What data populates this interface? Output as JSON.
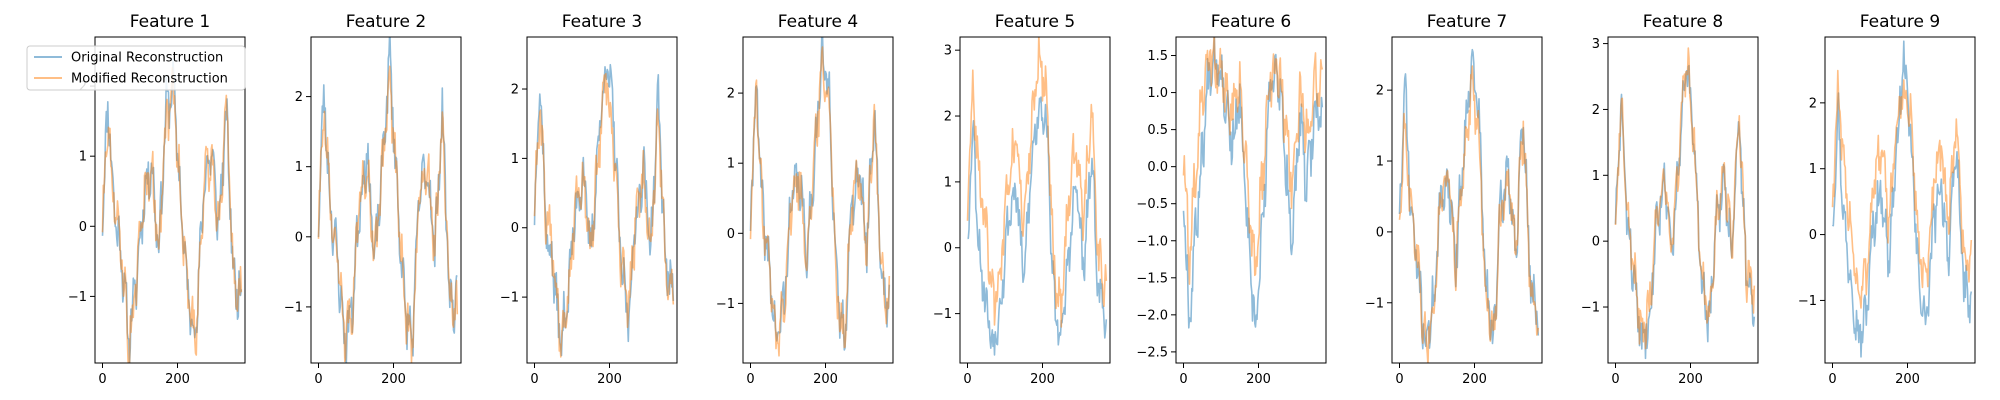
{
  "figure": {
    "background": "#ffffff"
  },
  "legend": {
    "placement": "upper-left of first panel",
    "entries": [
      {
        "label": "Original Reconstruction",
        "color": "#1f77b4",
        "alpha": 0.5
      },
      {
        "label": "Modified Reconstruction",
        "color": "#ff7f0e",
        "alpha": 0.5
      }
    ]
  },
  "chart_data": [
    {
      "type": "line",
      "title": "Feature 1",
      "x_ticks": [
        0,
        200
      ],
      "y_ticks": [
        -1,
        0,
        1,
        2
      ],
      "ylim": [
        -1.95,
        2.7
      ],
      "xlim": [
        -20,
        380
      ],
      "grid": false,
      "seed": 11,
      "series": [
        {
          "name": "Original Reconstruction",
          "x": [
            0,
            15,
            30,
            50,
            70,
            90,
            110,
            130,
            150,
            170,
            190,
            210,
            230,
            250,
            270,
            290,
            310,
            330,
            350,
            370
          ],
          "y": [
            0.2,
            1.8,
            0.3,
            -0.4,
            -1.6,
            -0.8,
            0.4,
            0.9,
            -0.3,
            1.7,
            2.0,
            0.2,
            -1.1,
            -1.5,
            0.6,
            1.1,
            0.0,
            1.6,
            -0.8,
            -1.0
          ]
        },
        {
          "name": "Modified Reconstruction",
          "x": [
            0,
            15,
            30,
            50,
            70,
            90,
            110,
            130,
            150,
            170,
            190,
            210,
            230,
            250,
            270,
            290,
            310,
            330,
            350,
            370
          ],
          "y": [
            0.2,
            1.6,
            0.3,
            -0.3,
            -1.7,
            -0.8,
            0.4,
            0.9,
            -0.3,
            1.5,
            1.9,
            0.2,
            -1.1,
            -1.5,
            0.6,
            1.0,
            0.0,
            1.7,
            -0.8,
            -1.0
          ]
        }
      ]
    },
    {
      "type": "line",
      "title": "Feature 2",
      "x_ticks": [
        0,
        200
      ],
      "y_ticks": [
        -1,
        0,
        1,
        2
      ],
      "ylim": [
        -1.8,
        2.85
      ],
      "xlim": [
        -20,
        380
      ],
      "grid": false,
      "seed": 23,
      "series": [
        {
          "name": "Original Reconstruction",
          "x": [
            0,
            15,
            30,
            50,
            70,
            90,
            110,
            130,
            150,
            170,
            190,
            210,
            230,
            250,
            270,
            290,
            310,
            330,
            350,
            370
          ],
          "y": [
            0.3,
            2.1,
            0.5,
            -0.3,
            -1.5,
            -1.0,
            0.5,
            1.2,
            -0.4,
            1.0,
            2.6,
            0.6,
            -1.0,
            -1.5,
            0.7,
            1.0,
            -0.2,
            1.8,
            -0.9,
            -1.0
          ]
        },
        {
          "name": "Modified Reconstruction",
          "x": [
            0,
            15,
            30,
            50,
            70,
            90,
            110,
            130,
            150,
            170,
            190,
            210,
            230,
            250,
            270,
            290,
            310,
            330,
            350,
            370
          ],
          "y": [
            0.3,
            1.9,
            0.5,
            -0.3,
            -1.5,
            -1.0,
            0.5,
            1.1,
            -0.4,
            1.0,
            2.3,
            0.6,
            -1.0,
            -1.5,
            0.7,
            1.0,
            -0.2,
            1.7,
            -0.9,
            -1.0
          ]
        }
      ]
    },
    {
      "type": "line",
      "title": "Feature 3",
      "x_ticks": [
        0,
        200
      ],
      "y_ticks": [
        -1,
        0,
        1,
        2
      ],
      "ylim": [
        -1.95,
        2.75
      ],
      "xlim": [
        -20,
        380
      ],
      "grid": false,
      "seed": 37,
      "series": [
        {
          "name": "Original Reconstruction",
          "x": [
            0,
            15,
            30,
            50,
            70,
            90,
            110,
            130,
            150,
            170,
            190,
            210,
            230,
            250,
            270,
            290,
            310,
            330,
            350,
            370
          ],
          "y": [
            0.3,
            2.2,
            0.0,
            -0.6,
            -1.7,
            -0.9,
            0.3,
            0.8,
            -0.4,
            1.2,
            2.4,
            1.7,
            -0.5,
            -1.3,
            0.1,
            0.9,
            -0.3,
            1.9,
            -0.6,
            -0.9
          ]
        },
        {
          "name": "Modified Reconstruction",
          "x": [
            0,
            15,
            30,
            50,
            70,
            90,
            110,
            130,
            150,
            170,
            190,
            210,
            230,
            250,
            270,
            290,
            310,
            330,
            350,
            370
          ],
          "y": [
            0.3,
            1.7,
            0.2,
            -0.4,
            -1.6,
            -0.9,
            0.3,
            0.7,
            -0.4,
            1.1,
            2.2,
            1.2,
            -0.5,
            -1.2,
            0.1,
            0.8,
            -0.3,
            1.6,
            -0.6,
            -0.9
          ]
        }
      ]
    },
    {
      "type": "line",
      "title": "Feature 4",
      "x_ticks": [
        0,
        200
      ],
      "y_ticks": [
        -1,
        0,
        1,
        2
      ],
      "ylim": [
        -1.85,
        2.8
      ],
      "xlim": [
        -20,
        380
      ],
      "grid": false,
      "seed": 41,
      "series": [
        {
          "name": "Original Reconstruction",
          "x": [
            0,
            15,
            30,
            50,
            70,
            90,
            110,
            130,
            150,
            170,
            190,
            210,
            230,
            250,
            270,
            290,
            310,
            330,
            350,
            370
          ],
          "y": [
            0.2,
            2.2,
            0.4,
            -0.5,
            -1.6,
            -0.9,
            0.5,
            0.8,
            -0.3,
            1.0,
            2.5,
            2.0,
            -0.8,
            -1.5,
            0.4,
            0.9,
            -0.2,
            1.8,
            -0.7,
            -1.0
          ]
        },
        {
          "name": "Modified Reconstruction",
          "x": [
            0,
            15,
            30,
            50,
            70,
            90,
            110,
            130,
            150,
            170,
            190,
            210,
            230,
            250,
            270,
            290,
            310,
            330,
            350,
            370
          ],
          "y": [
            0.2,
            2.1,
            0.4,
            -0.5,
            -1.6,
            -0.9,
            0.5,
            0.8,
            -0.3,
            1.0,
            2.4,
            1.9,
            -0.8,
            -1.5,
            0.4,
            0.9,
            -0.2,
            1.7,
            -0.7,
            -1.0
          ]
        }
      ]
    },
    {
      "type": "line",
      "title": "Feature 5",
      "x_ticks": [
        0,
        200
      ],
      "y_ticks": [
        -1,
        0,
        1,
        2,
        3
      ],
      "ylim": [
        -1.75,
        3.2
      ],
      "xlim": [
        -20,
        380
      ],
      "grid": false,
      "seed": 53,
      "series": [
        {
          "name": "Original Reconstruction",
          "x": [
            0,
            15,
            30,
            50,
            70,
            90,
            110,
            130,
            150,
            170,
            190,
            210,
            230,
            250,
            270,
            290,
            310,
            330,
            350,
            370
          ],
          "y": [
            0.2,
            1.9,
            0.0,
            -0.9,
            -1.5,
            -0.7,
            0.5,
            0.9,
            -0.5,
            1.2,
            2.2,
            2.0,
            -0.8,
            -1.4,
            -0.1,
            1.0,
            -0.4,
            1.4,
            -0.7,
            -1.0
          ]
        },
        {
          "name": "Modified Reconstruction",
          "x": [
            0,
            15,
            30,
            50,
            70,
            90,
            110,
            130,
            150,
            170,
            190,
            210,
            230,
            250,
            270,
            290,
            310,
            330,
            350,
            370
          ],
          "y": [
            0.6,
            2.6,
            1.0,
            0.3,
            -0.9,
            -0.2,
            1.1,
            1.6,
            0.3,
            1.8,
            2.9,
            2.4,
            -0.3,
            -1.0,
            0.8,
            1.6,
            0.4,
            2.2,
            -0.2,
            -0.6
          ]
        }
      ]
    },
    {
      "type": "line",
      "title": "Feature 6",
      "x_ticks": [
        0,
        200
      ],
      "y_ticks": [
        -2.5,
        -2.0,
        -1.5,
        -1.0,
        -0.5,
        0.0,
        0.5,
        1.0,
        1.5
      ],
      "ylim": [
        -2.65,
        1.75
      ],
      "xlim": [
        -20,
        380
      ],
      "grid": false,
      "seed": 67,
      "series": [
        {
          "name": "Original Reconstruction",
          "x": [
            0,
            15,
            30,
            50,
            70,
            90,
            110,
            130,
            150,
            170,
            190,
            210,
            230,
            250,
            270,
            290,
            310,
            330,
            350,
            370
          ],
          "y": [
            -0.3,
            -2.1,
            -1.0,
            0.2,
            1.4,
            1.5,
            1.0,
            0.3,
            0.9,
            -0.8,
            -2.3,
            -0.9,
            1.0,
            1.4,
            0.2,
            -1.0,
            0.6,
            -0.3,
            0.8,
            0.6
          ]
        },
        {
          "name": "Modified Reconstruction",
          "x": [
            0,
            15,
            30,
            50,
            70,
            90,
            110,
            130,
            150,
            170,
            190,
            210,
            230,
            250,
            270,
            290,
            310,
            330,
            350,
            370
          ],
          "y": [
            0.2,
            -1.3,
            -0.2,
            0.9,
            1.5,
            1.4,
            1.1,
            0.7,
            1.1,
            -0.2,
            -1.4,
            -0.2,
            1.2,
            1.3,
            0.7,
            -0.3,
            1.0,
            0.4,
            1.2,
            1.1
          ]
        }
      ]
    },
    {
      "type": "line",
      "title": "Feature 7",
      "x_ticks": [
        0,
        200
      ],
      "y_ticks": [
        -1,
        0,
        1,
        2
      ],
      "ylim": [
        -1.85,
        2.75
      ],
      "xlim": [
        -20,
        380
      ],
      "grid": false,
      "seed": 71,
      "series": [
        {
          "name": "Original Reconstruction",
          "x": [
            0,
            15,
            30,
            50,
            70,
            90,
            110,
            130,
            150,
            170,
            190,
            210,
            230,
            250,
            270,
            290,
            310,
            330,
            350,
            370
          ],
          "y": [
            0.2,
            2.1,
            0.3,
            -0.6,
            -1.6,
            -1.0,
            0.4,
            0.8,
            -0.4,
            1.1,
            2.4,
            1.8,
            -0.8,
            -1.5,
            0.3,
            0.9,
            -0.3,
            1.6,
            -0.8,
            -1.1
          ]
        },
        {
          "name": "Modified Reconstruction",
          "x": [
            0,
            15,
            30,
            50,
            70,
            90,
            110,
            130,
            150,
            170,
            190,
            210,
            230,
            250,
            270,
            290,
            310,
            330,
            350,
            370
          ],
          "y": [
            0.2,
            1.6,
            0.3,
            -0.5,
            -1.7,
            -1.0,
            0.4,
            0.8,
            -0.4,
            1.0,
            2.0,
            1.6,
            -0.9,
            -1.6,
            0.3,
            0.8,
            -0.3,
            1.5,
            -0.9,
            -1.2
          ]
        }
      ]
    },
    {
      "type": "line",
      "title": "Feature 8",
      "x_ticks": [
        0,
        200
      ],
      "y_ticks": [
        -1,
        0,
        1,
        2,
        3
      ],
      "ylim": [
        -1.85,
        3.1
      ],
      "xlim": [
        -20,
        380
      ],
      "grid": false,
      "seed": 83,
      "series": [
        {
          "name": "Original Reconstruction",
          "x": [
            0,
            15,
            30,
            50,
            70,
            90,
            110,
            130,
            150,
            170,
            190,
            210,
            230,
            250,
            270,
            290,
            310,
            330,
            350,
            370
          ],
          "y": [
            0.2,
            2.1,
            0.4,
            -0.6,
            -1.6,
            -1.1,
            0.3,
            0.9,
            -0.2,
            1.3,
            2.7,
            1.4,
            -0.6,
            -1.3,
            0.3,
            1.0,
            -0.2,
            1.8,
            -0.6,
            -1.0
          ]
        },
        {
          "name": "Modified Reconstruction",
          "x": [
            0,
            15,
            30,
            50,
            70,
            90,
            110,
            130,
            150,
            170,
            190,
            210,
            230,
            250,
            270,
            290,
            310,
            330,
            350,
            370
          ],
          "y": [
            0.2,
            2.2,
            0.5,
            -0.5,
            -1.5,
            -1.0,
            0.4,
            1.0,
            -0.1,
            1.4,
            2.8,
            1.5,
            -0.5,
            -1.2,
            0.4,
            1.1,
            -0.1,
            1.9,
            -0.5,
            -0.7
          ]
        }
      ]
    },
    {
      "type": "line",
      "title": "Feature 9",
      "x_ticks": [
        0,
        200
      ],
      "y_ticks": [
        -1,
        0,
        1,
        2
      ],
      "ylim": [
        -1.95,
        3.0
      ],
      "xlim": [
        -20,
        380
      ],
      "grid": false,
      "seed": 97,
      "series": [
        {
          "name": "Original Reconstruction",
          "x": [
            0,
            15,
            30,
            50,
            70,
            90,
            110,
            130,
            150,
            170,
            190,
            210,
            230,
            250,
            270,
            290,
            310,
            330,
            350,
            370
          ],
          "y": [
            0.2,
            1.9,
            0.2,
            -0.7,
            -1.6,
            -1.2,
            0.2,
            0.7,
            -0.4,
            1.2,
            2.7,
            1.3,
            -0.7,
            -1.4,
            0.2,
            0.8,
            -0.4,
            1.4,
            -0.8,
            -1.1
          ]
        },
        {
          "name": "Modified Reconstruction",
          "x": [
            0,
            15,
            30,
            50,
            70,
            90,
            110,
            130,
            150,
            170,
            190,
            210,
            230,
            250,
            270,
            290,
            310,
            330,
            350,
            370
          ],
          "y": [
            0.6,
            2.2,
            0.9,
            0.1,
            -1.0,
            -0.6,
            0.8,
            1.3,
            0.2,
            1.6,
            2.2,
            1.7,
            -0.2,
            -0.8,
            0.7,
            1.3,
            0.2,
            1.8,
            -0.3,
            -0.5
          ]
        }
      ]
    }
  ]
}
